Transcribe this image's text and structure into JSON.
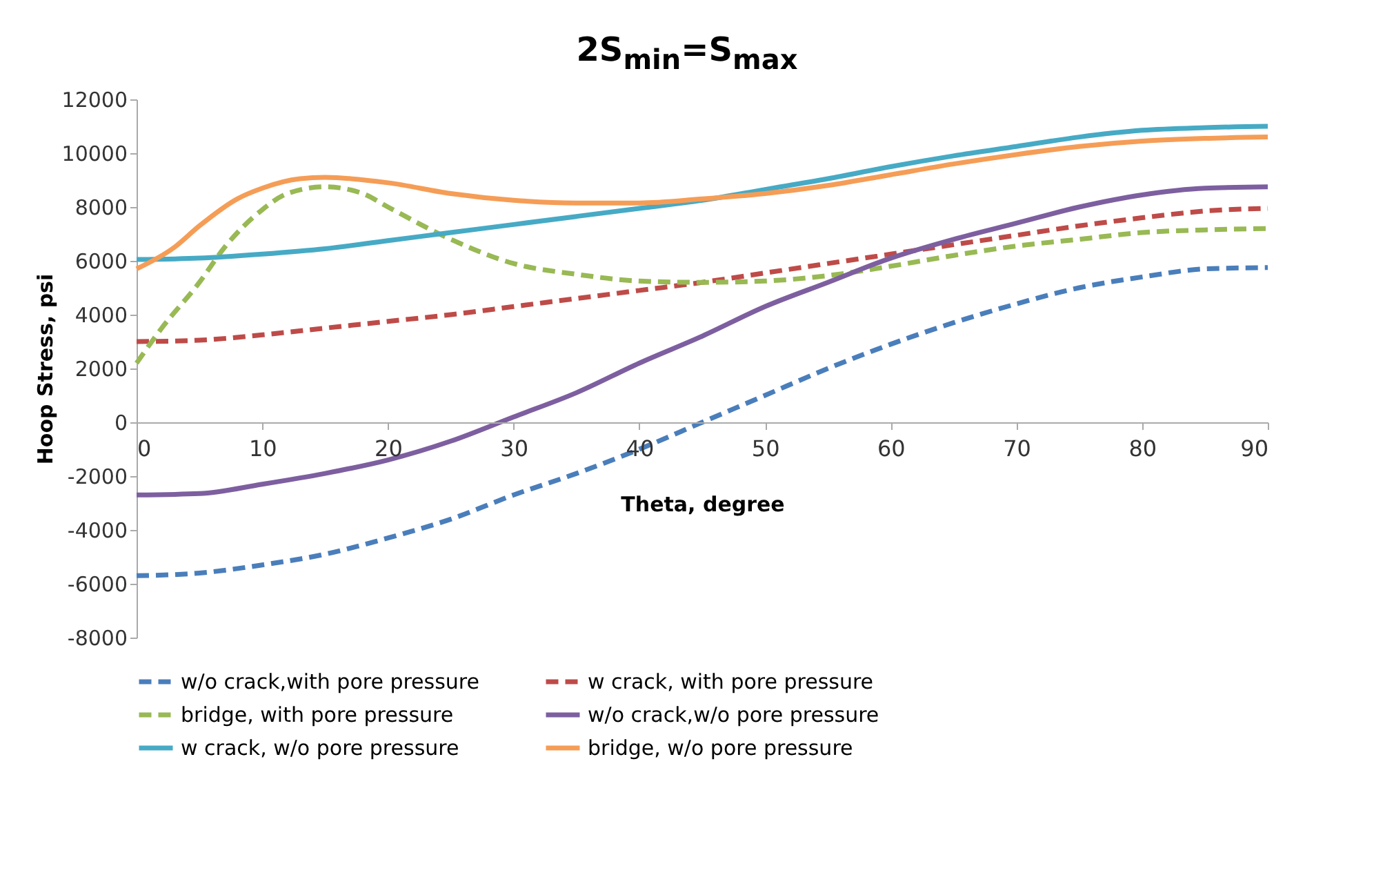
{
  "chart_data": {
    "type": "line",
    "title": "2S$_{min}$=S$_{max}$",
    "xlabel": "Theta, degree",
    "ylabel": "Hoop Stress, psi",
    "xlim": [
      0,
      90
    ],
    "xticks": [
      0,
      10,
      20,
      30,
      40,
      50,
      60,
      70,
      80,
      90
    ],
    "ylim": [
      -8000,
      12000
    ],
    "yticks": [
      -8000,
      -6000,
      -4000,
      -2000,
      0,
      2000,
      4000,
      6000,
      8000,
      10000,
      12000
    ],
    "grid": false,
    "legend": "bottom",
    "marker": "none",
    "series": [
      {
        "name": "w/o crack,with pore pressure",
        "color": "#4a7ebb",
        "line_style": "dashed",
        "x": [
          0,
          5,
          10,
          15,
          20,
          25,
          30,
          35,
          40,
          45,
          50,
          55,
          60,
          65,
          70,
          75,
          80,
          85,
          90
        ],
        "values": [
          -5700,
          -5600,
          -5300,
          -4900,
          -4300,
          -3600,
          -2700,
          -1900,
          -1000,
          0,
          1000,
          2000,
          2900,
          3700,
          4400,
          5000,
          5400,
          5700,
          5750
        ]
      },
      {
        "name": "w crack, with pore pressure",
        "color": "#be4b48",
        "line_style": "dashed",
        "x": [
          0,
          5,
          10,
          15,
          20,
          25,
          30,
          35,
          40,
          45,
          50,
          55,
          60,
          65,
          70,
          75,
          80,
          85,
          90
        ],
        "values": [
          3000,
          3050,
          3250,
          3500,
          3750,
          4000,
          4300,
          4600,
          4900,
          5200,
          5550,
          5900,
          6250,
          6600,
          6950,
          7300,
          7600,
          7850,
          7950
        ]
      },
      {
        "name": "bridge, with pore pressure",
        "color": "#98b954",
        "line_style": "dashed",
        "x": [
          0,
          2,
          5,
          7,
          10,
          12,
          15,
          18,
          20,
          25,
          30,
          35,
          40,
          45,
          50,
          55,
          60,
          65,
          70,
          75,
          80,
          85,
          90
        ],
        "values": [
          2200,
          3500,
          5200,
          6500,
          7900,
          8500,
          8750,
          8500,
          8000,
          6800,
          5900,
          5500,
          5250,
          5200,
          5250,
          5450,
          5800,
          6200,
          6550,
          6800,
          7050,
          7150,
          7200
        ]
      },
      {
        "name": "w/o crack,w/o pore pressure",
        "color": "#7d5fa0",
        "line_style": "solid",
        "x": [
          0,
          5,
          10,
          15,
          20,
          25,
          30,
          35,
          40,
          45,
          50,
          55,
          60,
          65,
          70,
          75,
          80,
          85,
          90
        ],
        "values": [
          -2700,
          -2650,
          -2300,
          -1900,
          -1400,
          -700,
          200,
          1100,
          2200,
          3200,
          4300,
          5200,
          6100,
          6800,
          7400,
          8000,
          8450,
          8700,
          8750
        ]
      },
      {
        "name": "w crack, w/o pore pressure",
        "color": "#46aac5",
        "line_style": "solid",
        "x": [
          0,
          5,
          10,
          15,
          20,
          25,
          30,
          35,
          40,
          45,
          50,
          55,
          60,
          65,
          70,
          75,
          80,
          85,
          90
        ],
        "values": [
          6050,
          6100,
          6250,
          6450,
          6750,
          7050,
          7350,
          7650,
          7950,
          8250,
          8650,
          9050,
          9500,
          9900,
          10250,
          10600,
          10850,
          10950,
          11000
        ]
      },
      {
        "name": "bridge, w/o pore pressure",
        "color": "#f59d56",
        "line_style": "solid",
        "x": [
          0,
          3,
          5,
          8,
          10,
          13,
          15,
          20,
          25,
          30,
          35,
          40,
          45,
          50,
          55,
          60,
          65,
          70,
          75,
          80,
          85,
          90
        ],
        "values": [
          5700,
          6500,
          7300,
          8300,
          8700,
          9050,
          9100,
          8900,
          8500,
          8250,
          8150,
          8150,
          8300,
          8500,
          8800,
          9200,
          9600,
          9950,
          10250,
          10450,
          10550,
          10600
        ]
      }
    ]
  }
}
